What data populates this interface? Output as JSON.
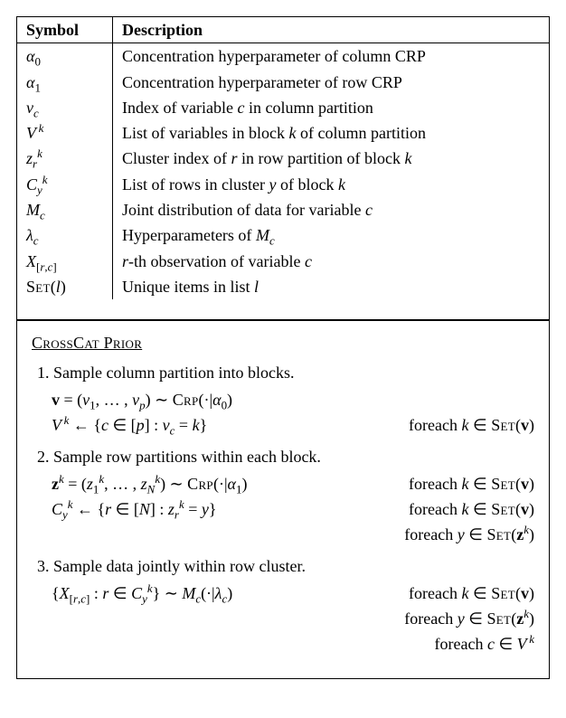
{
  "symbol_table": {
    "headers": {
      "symbol": "Symbol",
      "description": "Description"
    },
    "rows": [
      {
        "symbol_html": "<span class='it'>α</span><sub>0</sub>",
        "desc": "Concentration hyperparameter of column CRP"
      },
      {
        "symbol_html": "<span class='it'>α</span><sub>1</sub>",
        "desc": "Concentration hyperparameter of row CRP"
      },
      {
        "symbol_html": "<span class='it'>v</span><sub><span class='it'>c</span></sub>",
        "desc_html": "Index of variable <span class='it'>c</span> in column partition"
      },
      {
        "symbol_html": "<span class='frakV'>V</span><sup>&thinsp;<span class='it'>k</span></sup>",
        "desc_html": "List of variables in block <span class='it'>k</span> of column partition"
      },
      {
        "symbol_html": "<span class='it'>z</span><sub><span class='it'>r</span></sub><sup><span class='it'>k</span></sup>",
        "desc_html": "Cluster index of <span class='it'>r</span> in row partition of block <span class='it'>k</span>"
      },
      {
        "symbol_html": "<span class='frakC'>C</span><sub><span class='it'>y</span></sub><sup><span class='it'>k</span></sup>",
        "desc_html": "List of rows in cluster <span class='it'>y</span> of block <span class='it'>k</span>"
      },
      {
        "symbol_html": "<span class='it'>M</span><sub><span class='it'>c</span></sub>",
        "desc_html": "Joint distribution of data for variable <span class='it'>c</span>"
      },
      {
        "symbol_html": "<span class='it'>λ</span><sub><span class='it'>c</span></sub>",
        "desc_html": "Hyperparameters of <span class='it'>M</span><sub><span class='it'>c</span></sub>"
      },
      {
        "symbol_html": "<span class='it'>X</span><sub>[<span class='it'>r</span>,<span class='it'>c</span>]</sub>",
        "desc_html": "<span class='it'>r</span>-th observation of variable <span class='it'>c</span>"
      },
      {
        "symbol_html": "<span class='sc'>Set</span>(<span class='it'>l</span>)",
        "desc_html": "Unique items in list <span class='it'>l</span>"
      }
    ]
  },
  "prior": {
    "title_html": "<span class='sc'>CrossCat Prior</span>",
    "steps": [
      {
        "text": "1. Sample column partition into blocks.",
        "lines": [
          {
            "lhs_html": "<span class='bf'>v</span> = (<span class='it'>v</span><sub>1</sub>, … , <span class='it'>v</span><sub><span class='it'>p</span></sub>) ∼ <span class='sc'>Crp</span>(·|<span class='it'>α</span><sub>0</sub>)",
            "rhs_html": ""
          },
          {
            "lhs_html": "<span class='frakV'>V</span><sup>&thinsp;<span class='it'>k</span></sup> ← {<span class='it'>c</span> ∈ [<span class='it'>p</span>] : <span class='it'>v</span><sub><span class='it'>c</span></sub> = <span class='it'>k</span>}",
            "rhs_html": "foreach <span class='it'>k</span> ∈ <span class='sc'>Set</span>(<span class='bf'>v</span>)"
          }
        ]
      },
      {
        "text": "2. Sample row partitions within each block.",
        "lines": [
          {
            "lhs_html": "<span class='bf'>z</span><sup><span class='it'>k</span></sup> = (<span class='it'>z</span><sub>1</sub><sup><span class='it'>k</span></sup>, … , <span class='it'>z</span><sub><span class='it'>N</span></sub><sup><span class='it'>k</span></sup>) ∼ <span class='sc'>Crp</span>(·|<span class='it'>α</span><sub>1</sub>)",
            "rhs_html": "foreach <span class='it'>k</span> ∈ <span class='sc'>Set</span>(<span class='bf'>v</span>)"
          },
          {
            "lhs_html": "<span class='frakC'>C</span><sub><span class='it'>y</span></sub><sup><span class='it'>k</span></sup> ← {<span class='it'>r</span> ∈ [<span class='it'>N</span>] : <span class='it'>z</span><sub><span class='it'>r</span></sub><sup><span class='it'>k</span></sup> = <span class='it'>y</span>}",
            "rhs_html": "foreach <span class='it'>k</span> ∈ <span class='sc'>Set</span>(<span class='bf'>v</span>)"
          }
        ],
        "trailing_rhs": [
          "foreach <span class='it'>y</span> ∈ <span class='sc'>Set</span>(<span class='bf'>z</span><sup><span class='it'>k</span></sup>)"
        ]
      },
      {
        "text": "3. Sample data jointly within row cluster.",
        "lines": [
          {
            "lhs_html": "{<span class='it'>X</span><sub>[<span class='it'>r</span>,<span class='it'>c</span>]</sub> : <span class='it'>r</span> ∈ <span class='frakC'>C</span><sub><span class='it'>y</span></sub><sup><span class='it'>k</span></sup>} ∼ <span class='it'>M</span><sub><span class='it'>c</span></sub>(·|<span class='it'>λ</span><sub><span class='it'>c</span></sub>)",
            "rhs_html": "foreach <span class='it'>k</span> ∈ <span class='sc'>Set</span>(<span class='bf'>v</span>)"
          }
        ],
        "trailing_rhs": [
          "foreach <span class='it'>y</span> ∈ <span class='sc'>Set</span>(<span class='bf'>z</span><sup><span class='it'>k</span></sup>)",
          "foreach <span class='it'>c</span> ∈ <span class='frakV'>V</span><sup>&thinsp;<span class='it'>k</span></sup>"
        ]
      }
    ]
  }
}
